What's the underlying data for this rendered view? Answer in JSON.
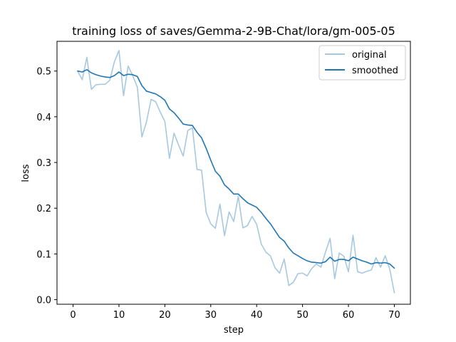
{
  "chart_data": {
    "type": "line",
    "title": "training loss of saves/Gemma-2-9B-Chat/lora/gm-005-05",
    "xlabel": "step",
    "ylabel": "loss",
    "xlim": [
      -3.5,
      73.5
    ],
    "ylim": [
      -0.01,
      0.565
    ],
    "xticks": [
      0,
      10,
      20,
      30,
      40,
      50,
      60,
      70
    ],
    "yticks": [
      0.0,
      0.1,
      0.2,
      0.3,
      0.4,
      0.5
    ],
    "ytick_labels": [
      "0.0",
      "0.1",
      "0.2",
      "0.3",
      "0.4",
      "0.5"
    ],
    "grid": false,
    "legend_position": "top-right",
    "colors": {
      "original": "#a6c8e0",
      "smoothed": "#1f77b4"
    },
    "x": [
      1,
      2,
      3,
      4,
      5,
      6,
      7,
      8,
      9,
      10,
      11,
      12,
      13,
      14,
      15,
      16,
      17,
      18,
      19,
      20,
      21,
      22,
      23,
      24,
      25,
      26,
      27,
      28,
      29,
      30,
      31,
      32,
      33,
      34,
      35,
      36,
      37,
      38,
      39,
      40,
      41,
      42,
      43,
      44,
      45,
      46,
      47,
      48,
      49,
      50,
      51,
      52,
      53,
      54,
      55,
      56,
      57,
      58,
      59,
      60,
      61,
      62,
      63,
      64,
      65,
      66,
      67,
      68,
      69,
      70
    ],
    "series": [
      {
        "name": "original",
        "values": [
          0.5,
          0.481,
          0.53,
          0.46,
          0.47,
          0.471,
          0.471,
          0.48,
          0.52,
          0.545,
          0.446,
          0.511,
          0.49,
          0.465,
          0.356,
          0.389,
          0.438,
          0.433,
          0.41,
          0.39,
          0.309,
          0.364,
          0.338,
          0.314,
          0.37,
          0.376,
          0.285,
          0.283,
          0.191,
          0.166,
          0.156,
          0.209,
          0.14,
          0.192,
          0.171,
          0.226,
          0.157,
          0.162,
          0.182,
          0.165,
          0.122,
          0.104,
          0.096,
          0.07,
          0.058,
          0.089,
          0.031,
          0.038,
          0.057,
          0.058,
          0.052,
          0.068,
          0.078,
          0.071,
          0.104,
          0.134,
          0.046,
          0.102,
          0.095,
          0.061,
          0.141,
          0.061,
          0.058,
          0.062,
          0.065,
          0.092,
          0.071,
          0.096,
          0.067,
          0.015
        ]
      },
      {
        "name": "smoothed",
        "values": [
          0.5,
          0.498,
          0.503,
          0.496,
          0.492,
          0.489,
          0.487,
          0.486,
          0.49,
          0.498,
          0.49,
          0.493,
          0.492,
          0.488,
          0.468,
          0.456,
          0.453,
          0.45,
          0.444,
          0.436,
          0.417,
          0.409,
          0.397,
          0.384,
          0.382,
          0.381,
          0.366,
          0.354,
          0.331,
          0.305,
          0.281,
          0.27,
          0.251,
          0.242,
          0.231,
          0.231,
          0.221,
          0.212,
          0.207,
          0.202,
          0.191,
          0.178,
          0.166,
          0.151,
          0.136,
          0.128,
          0.113,
          0.102,
          0.096,
          0.09,
          0.085,
          0.082,
          0.081,
          0.08,
          0.083,
          0.093,
          0.084,
          0.088,
          0.088,
          0.085,
          0.093,
          0.089,
          0.085,
          0.082,
          0.078,
          0.081,
          0.08,
          0.081,
          0.078,
          0.069
        ]
      }
    ]
  }
}
